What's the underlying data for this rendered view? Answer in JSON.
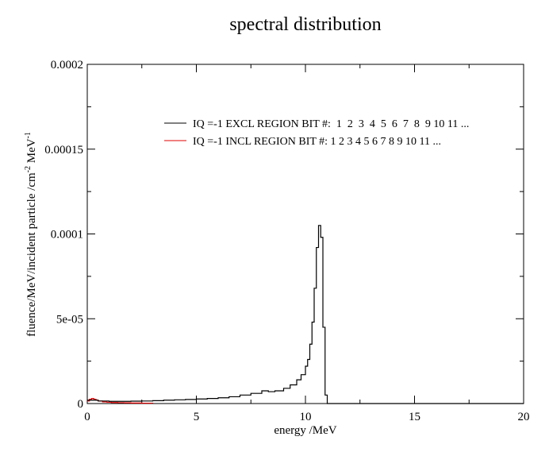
{
  "chart_data": {
    "type": "line",
    "title": "spectral distribution",
    "xlabel": "energy /MeV",
    "ylabel_main": "fluence/MeV/incident particle /cm",
    "ylabel_sup1": "-2",
    "ylabel_mid": " MeV",
    "ylabel_sup2": "-1",
    "xlim": [
      0,
      20
    ],
    "ylim": [
      0,
      0.0002
    ],
    "grid": false,
    "legend_position": "top-right",
    "x_ticks": [
      {
        "value": 0,
        "label": "0"
      },
      {
        "value": 5,
        "label": "5"
      },
      {
        "value": 10,
        "label": "10"
      },
      {
        "value": 15,
        "label": "15"
      },
      {
        "value": 20,
        "label": "20"
      }
    ],
    "y_ticks": [
      {
        "value": 0,
        "label": "0"
      },
      {
        "value": 5e-05,
        "label": "5e-05"
      },
      {
        "value": 0.0001,
        "label": "0.0001"
      },
      {
        "value": 0.00015,
        "label": "0.00015"
      },
      {
        "value": 0.0002,
        "label": "0.0002"
      }
    ],
    "series": [
      {
        "name": "IQ =-1 EXCL REGION BIT #:  1  2  3  4  5  6  7  8  9 10 11 ...",
        "color": "#000000",
        "style": "step",
        "x": [
          0,
          0.5,
          1,
          1.5,
          2,
          2.5,
          3,
          3.5,
          4,
          4.5,
          5,
          5.5,
          6,
          6.5,
          7,
          7.5,
          8,
          8.3,
          8.6,
          9,
          9.3,
          9.6,
          9.8,
          10,
          10.1,
          10.2,
          10.3,
          10.4,
          10.5,
          10.6,
          10.7,
          10.8,
          10.9,
          11.0,
          11.1,
          11.5,
          20
        ],
        "y": [
          2e-06,
          1.5e-06,
          1.3e-06,
          1.3e-06,
          1.4e-06,
          1.5e-06,
          1.7e-06,
          2e-06,
          2.2e-06,
          2.4e-06,
          2.7e-06,
          3e-06,
          3.4e-06,
          4e-06,
          5e-06,
          6e-06,
          7.5e-06,
          7e-06,
          7.5e-06,
          9e-06,
          1.1e-05,
          1.4e-05,
          1.7e-05,
          2.2e-05,
          2.6e-05,
          3.5e-05,
          4.8e-05,
          6.8e-05,
          9.2e-05,
          0.000105,
          9.8e-05,
          4.5e-05,
          5e-06,
          0,
          0,
          0,
          0
        ]
      },
      {
        "name": "IQ =-1 INCL REGION BIT #: 1 2 3 4 5 6 7 8 9 10 11 ...",
        "color": "#e00000",
        "style": "step",
        "x": [
          0,
          0.1,
          0.2,
          0.3,
          0.4,
          0.5,
          0.7,
          0.9,
          1.1,
          1.4,
          1.7,
          2.0,
          2.5,
          3.0
        ],
        "y": [
          1.5e-06,
          2.5e-06,
          3e-06,
          2.5e-06,
          2e-06,
          1.5e-06,
          1e-06,
          8e-07,
          6e-07,
          5e-07,
          4e-07,
          3e-07,
          2e-07,
          1e-07
        ]
      }
    ]
  }
}
